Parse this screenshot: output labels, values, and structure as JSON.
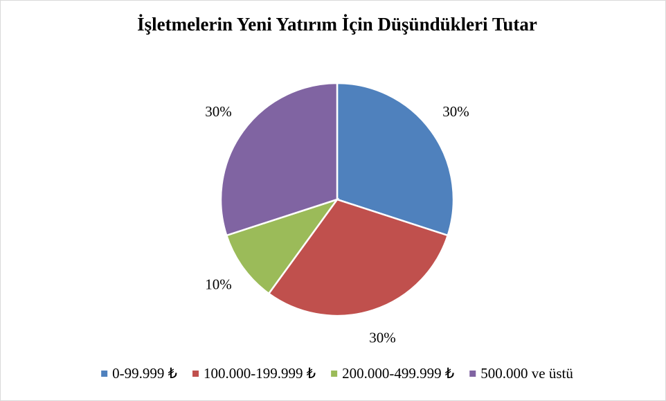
{
  "chart_data": {
    "type": "pie",
    "title": "İşletmelerin Yeni Yatırım İçin Düşündükleri Tutar",
    "categories": [
      "0-99.999 ₺",
      "100.000-199.999 ₺",
      "200.000-499.999 ₺",
      "500.000 ve üstü"
    ],
    "values": [
      30,
      30,
      10,
      30
    ],
    "value_labels": [
      "30%",
      "30%",
      "10%",
      "30%"
    ],
    "colors": [
      "#4f81bd",
      "#c0504d",
      "#9bbb59",
      "#8064a2"
    ],
    "legend": "bottom"
  }
}
